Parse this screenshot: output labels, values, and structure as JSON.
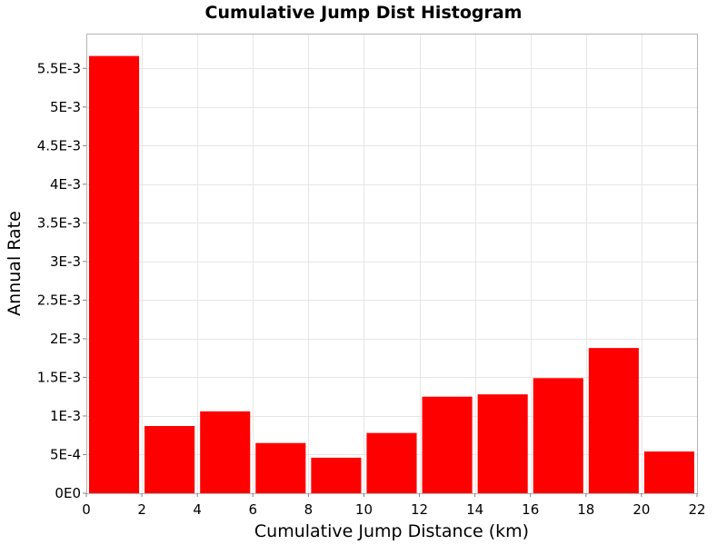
{
  "chart_data": {
    "type": "bar",
    "title": "Cumulative Jump Dist Histogram",
    "xlabel": "Cumulative Jump Distance (km)",
    "ylabel": "Annual Rate",
    "xlim": [
      0,
      22
    ],
    "ylim": [
      0,
      0.00595
    ],
    "bar_width": 2,
    "x_ticks": [
      0,
      2,
      4,
      6,
      8,
      10,
      12,
      14,
      16,
      18,
      20,
      22
    ],
    "x_tick_labels": [
      "0",
      "2",
      "4",
      "6",
      "8",
      "10",
      "12",
      "14",
      "16",
      "18",
      "20",
      "22"
    ],
    "y_ticks": [
      0,
      0.0005,
      0.001,
      0.0015,
      0.002,
      0.0025,
      0.003,
      0.0035,
      0.004,
      0.0045,
      0.005,
      0.0055
    ],
    "y_tick_labels": [
      "0E0",
      "5E-4",
      "1E-3",
      "1.5E-3",
      "2E-3",
      "2.5E-3",
      "3E-3",
      "3.5E-3",
      "4E-3",
      "4.5E-3",
      "5E-3",
      "5.5E-3"
    ],
    "grid": true,
    "series": [
      {
        "x": [
          1,
          3,
          5,
          7,
          9,
          11,
          13,
          15,
          17,
          19,
          21
        ],
        "values": [
          0.00566,
          0.00087,
          0.00106,
          0.00065,
          0.00046,
          0.00078,
          0.00125,
          0.00128,
          0.00149,
          0.00188,
          0.00054
        ]
      }
    ],
    "colors": {
      "bar": "#ff0000"
    }
  }
}
